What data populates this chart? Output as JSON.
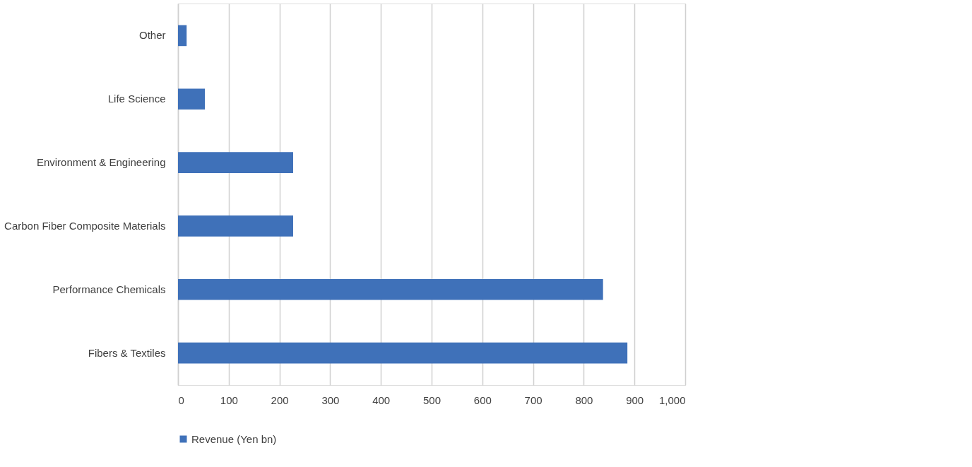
{
  "chart_data": {
    "type": "bar",
    "orientation": "horizontal",
    "categories": [
      "Other",
      "Life Science",
      "Environment & Engineering",
      "Carbon Fiber Composite Materials",
      "Performance Chemicals",
      "Fibers & Textiles"
    ],
    "series": [
      {
        "name": "Revenue (Yen bn)",
        "color": "#3f71b9",
        "values": [
          17,
          53,
          227,
          227,
          838,
          886
        ]
      }
    ],
    "xlim": [
      0,
      1000
    ],
    "xticks": [
      0,
      100,
      200,
      300,
      400,
      500,
      600,
      700,
      800,
      900,
      {
        "value": 1000,
        "label": "1,000"
      }
    ],
    "grid": "x",
    "legend": "bottom"
  }
}
